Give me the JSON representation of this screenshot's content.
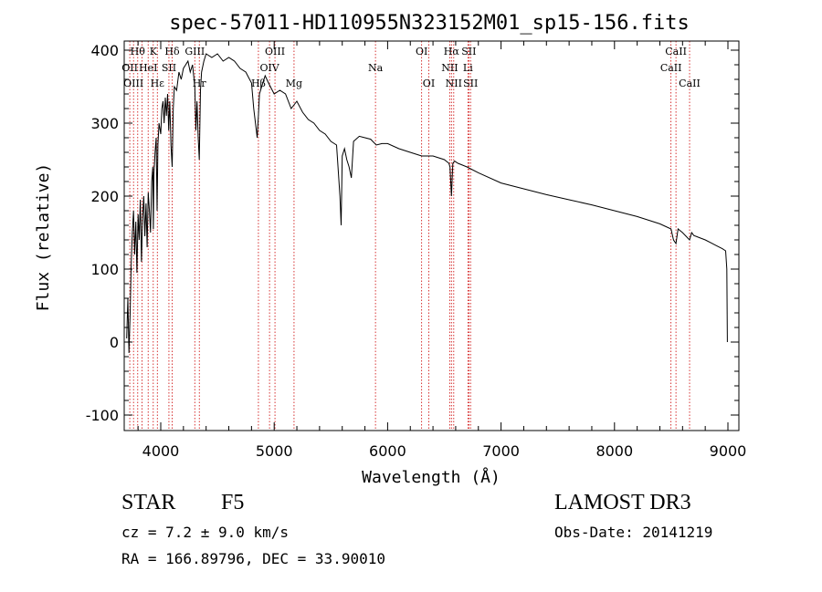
{
  "chart_data": {
    "type": "line",
    "title": "spec-57011-HD110955N323152M01_sp15-156.fits",
    "xlabel": "Wavelength (Å)",
    "ylabel": "Flux (relative)",
    "xlim": [
      3700,
      9100
    ],
    "ylim": [
      -120,
      410
    ],
    "xticks": [
      4000,
      5000,
      6000,
      7000,
      8000,
      9000
    ],
    "yticks": [
      -100,
      0,
      100,
      200,
      300,
      400
    ],
    "grid": false,
    "series": [
      {
        "name": "flux",
        "x": [
          3700,
          3710,
          3720,
          3730,
          3740,
          3750,
          3760,
          3770,
          3780,
          3790,
          3800,
          3810,
          3820,
          3830,
          3840,
          3850,
          3860,
          3870,
          3880,
          3890,
          3900,
          3910,
          3920,
          3930,
          3935,
          3940,
          3950,
          3960,
          3968,
          3975,
          3985,
          4000,
          4010,
          4020,
          4030,
          4040,
          4050,
          4060,
          4070,
          4080,
          4090,
          4101,
          4110,
          4120,
          4140,
          4160,
          4180,
          4200,
          4220,
          4240,
          4260,
          4280,
          4300,
          4310,
          4320,
          4330,
          4340,
          4350,
          4360,
          4380,
          4400,
          4450,
          4500,
          4550,
          4600,
          4650,
          4700,
          4750,
          4800,
          4820,
          4850,
          4861,
          4870,
          4890,
          4920,
          4950,
          5000,
          5050,
          5100,
          5150,
          5200,
          5250,
          5300,
          5350,
          5400,
          5450,
          5500,
          5550,
          5580,
          5590,
          5600,
          5620,
          5640,
          5660,
          5680,
          5700,
          5750,
          5800,
          5850,
          5900,
          5950,
          6000,
          6100,
          6200,
          6300,
          6400,
          6500,
          6540,
          6550,
          6563,
          6575,
          6590,
          6620,
          6700,
          6800,
          7000,
          7200,
          7400,
          7600,
          7800,
          8000,
          8200,
          8400,
          8498,
          8520,
          8542,
          8560,
          8600,
          8662,
          8680,
          8700,
          8750,
          8800,
          8850,
          8900,
          8950,
          8980,
          8990,
          8995
        ],
        "values": [
          5,
          60,
          -15,
          40,
          110,
          150,
          180,
          120,
          165,
          95,
          175,
          140,
          195,
          110,
          170,
          200,
          145,
          190,
          130,
          205,
          180,
          150,
          220,
          240,
          155,
          230,
          260,
          280,
          180,
          270,
          300,
          285,
          320,
          330,
          300,
          335,
          310,
          340,
          290,
          330,
          270,
          240,
          320,
          350,
          345,
          370,
          360,
          375,
          380,
          385,
          370,
          380,
          350,
          290,
          330,
          280,
          250,
          345,
          370,
          385,
          395,
          390,
          395,
          385,
          390,
          385,
          375,
          370,
          355,
          320,
          280,
          310,
          340,
          350,
          365,
          355,
          340,
          345,
          340,
          320,
          330,
          315,
          305,
          300,
          290,
          285,
          275,
          270,
          200,
          160,
          255,
          265,
          250,
          240,
          225,
          275,
          282,
          280,
          278,
          270,
          272,
          272,
          265,
          260,
          255,
          255,
          250,
          245,
          240,
          200,
          245,
          248,
          245,
          240,
          232,
          218,
          210,
          202,
          195,
          188,
          180,
          172,
          162,
          155,
          140,
          135,
          155,
          150,
          140,
          150,
          146,
          143,
          140,
          136,
          132,
          128,
          125,
          100,
          0
        ]
      }
    ],
    "line_labels": [
      {
        "text": "Hθ",
        "x": 3797,
        "row": 0
      },
      {
        "text": "K",
        "x": 3934,
        "row": 0
      },
      {
        "text": "Hδ",
        "x": 4101,
        "row": 0
      },
      {
        "text": "GIII",
        "x": 4300,
        "row": 0
      },
      {
        "text": "OIII",
        "x": 5007,
        "row": 0
      },
      {
        "text": "OI",
        "x": 6300,
        "row": 0
      },
      {
        "text": "Hα",
        "x": 6563,
        "row": 0
      },
      {
        "text": "SII",
        "x": 6716,
        "row": 0
      },
      {
        "text": "CaII",
        "x": 8542,
        "row": 0
      },
      {
        "text": "OII",
        "x": 3727,
        "row": 1
      },
      {
        "text": "HeI",
        "x": 3889,
        "row": 1
      },
      {
        "text": "SII",
        "x": 4072,
        "row": 1
      },
      {
        "text": "OIV",
        "x": 4959,
        "row": 1
      },
      {
        "text": "Na",
        "x": 5893,
        "row": 1
      },
      {
        "text": "NII",
        "x": 6548,
        "row": 1
      },
      {
        "text": "Li",
        "x": 6708,
        "row": 1
      },
      {
        "text": "CaII",
        "x": 8498,
        "row": 1
      },
      {
        "text": "OIII",
        "x": 3760,
        "row": 2
      },
      {
        "text": "Hε",
        "x": 3970,
        "row": 2
      },
      {
        "text": "Hr",
        "x": 4340,
        "row": 2
      },
      {
        "text": "Hβ",
        "x": 4861,
        "row": 2
      },
      {
        "text": "Mg",
        "x": 5175,
        "row": 2
      },
      {
        "text": "OI",
        "x": 6363,
        "row": 2
      },
      {
        "text": "NII",
        "x": 6583,
        "row": 2
      },
      {
        "text": "SII",
        "x": 6731,
        "row": 2
      },
      {
        "text": "CaII",
        "x": 8662,
        "row": 2
      }
    ],
    "line_markers": [
      3727,
      3760,
      3797,
      3835,
      3889,
      3934,
      3970,
      4072,
      4101,
      4300,
      4340,
      4861,
      4959,
      5007,
      5175,
      5893,
      6300,
      6363,
      6548,
      6563,
      6583,
      6708,
      6716,
      6731,
      8498,
      8542,
      8662
    ]
  },
  "info": {
    "object_class": "STAR",
    "subclass": "F5",
    "redshift": "cz = 7.2 ± 9.0 km/s",
    "coords": "RA = 166.89796, DEC =  33.90010",
    "survey": "LAMOST DR3",
    "obs_date": "Obs-Date: 20141219"
  }
}
